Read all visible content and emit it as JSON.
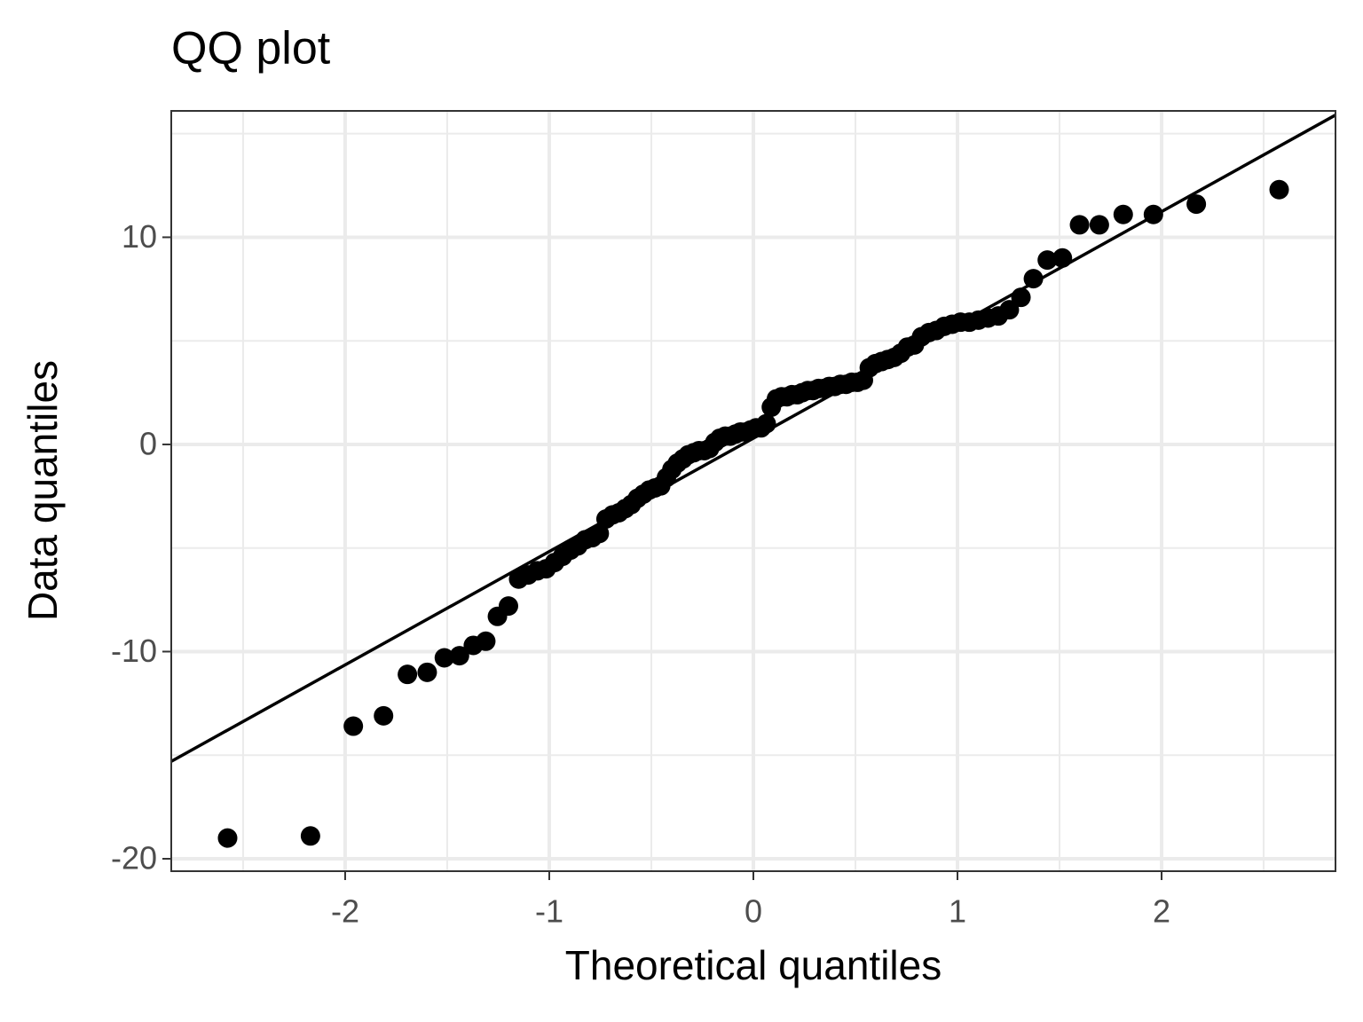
{
  "chart_data": {
    "type": "scatter",
    "title": "QQ plot",
    "x_label": "Theoretical quantiles",
    "y_label": "Data quantiles",
    "xlim": [
      -2.852,
      2.852
    ],
    "ylim": [
      -20.6,
      16.1
    ],
    "xticks": [
      -2,
      -1,
      0,
      1,
      2
    ],
    "yticks": [
      -20,
      -10,
      0,
      10
    ],
    "x_minor_breaks": [
      -2.5,
      -1.5,
      -0.5,
      0.5,
      1.5,
      2.5
    ],
    "y_minor_breaks": [
      -15,
      -5,
      5,
      15
    ],
    "grid": true,
    "color": "#000000",
    "series": [
      {
        "x": [
          -2.576,
          -2.17,
          -1.96,
          -1.812,
          -1.695,
          -1.598,
          -1.514,
          -1.44,
          -1.372,
          -1.311,
          -1.254,
          -1.2,
          -1.15,
          -1.103,
          -1.058,
          -1.015,
          -0.974,
          -0.935,
          -0.896,
          -0.86,
          -0.824,
          -0.789,
          -0.755,
          -0.722,
          -0.69,
          -0.659,
          -0.628,
          -0.598,
          -0.568,
          -0.539,
          -0.51,
          -0.482,
          -0.454,
          -0.426,
          -0.399,
          -0.372,
          -0.345,
          -0.319,
          -0.292,
          -0.266,
          -0.24,
          -0.215,
          -0.189,
          -0.164,
          -0.138,
          -0.113,
          -0.088,
          -0.063,
          -0.038,
          -0.013,
          0.013,
          0.038,
          0.063,
          0.088,
          0.113,
          0.138,
          0.164,
          0.189,
          0.215,
          0.24,
          0.266,
          0.292,
          0.319,
          0.345,
          0.372,
          0.399,
          0.426,
          0.454,
          0.482,
          0.51,
          0.539,
          0.568,
          0.598,
          0.628,
          0.659,
          0.69,
          0.722,
          0.755,
          0.789,
          0.824,
          0.86,
          0.896,
          0.935,
          0.974,
          1.015,
          1.058,
          1.103,
          1.15,
          1.2,
          1.254,
          1.311,
          1.372,
          1.44,
          1.514,
          1.598,
          1.695,
          1.812,
          1.96,
          2.17,
          2.576
        ],
        "values": [
          -19.0,
          -18.9,
          -13.6,
          -13.1,
          -11.1,
          -11.0,
          -10.3,
          -10.2,
          -9.7,
          -9.5,
          -8.3,
          -7.8,
          -6.5,
          -6.3,
          -6.1,
          -6.0,
          -5.7,
          -5.4,
          -5.1,
          -4.9,
          -4.6,
          -4.5,
          -4.3,
          -3.6,
          -3.4,
          -3.3,
          -3.1,
          -2.9,
          -2.6,
          -2.4,
          -2.2,
          -2.1,
          -2.0,
          -1.6,
          -1.2,
          -0.9,
          -0.7,
          -0.5,
          -0.4,
          -0.3,
          -0.3,
          -0.2,
          0.1,
          0.3,
          0.4,
          0.4,
          0.5,
          0.6,
          0.6,
          0.7,
          0.8,
          0.8,
          1.0,
          1.8,
          2.2,
          2.3,
          2.3,
          2.4,
          2.4,
          2.5,
          2.6,
          2.6,
          2.7,
          2.7,
          2.8,
          2.8,
          2.9,
          2.9,
          3.0,
          3.0,
          3.1,
          3.7,
          3.9,
          4.0,
          4.1,
          4.2,
          4.4,
          4.7,
          4.8,
          5.2,
          5.4,
          5.5,
          5.7,
          5.8,
          5.9,
          5.9,
          6.0,
          6.1,
          6.2,
          6.5,
          7.1,
          8.0,
          8.9,
          9.0,
          10.6,
          10.6,
          11.1,
          11.1,
          11.6,
          12.3
        ]
      }
    ],
    "reference_line": {
      "x": [
        -2.852,
        2.852
      ],
      "y": [
        -15.3,
        15.9
      ]
    }
  }
}
